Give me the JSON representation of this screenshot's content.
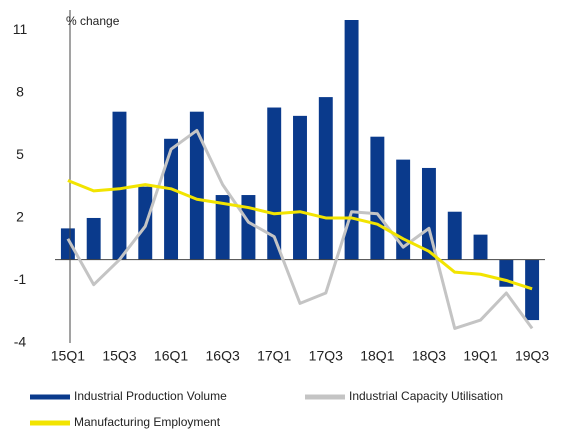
{
  "chart_data": {
    "type": "bar",
    "annotation": "% change",
    "categories": [
      "15Q1",
      null,
      "15Q3",
      null,
      "16Q1",
      null,
      "16Q3",
      null,
      "17Q1",
      null,
      "17Q3",
      null,
      "18Q1",
      null,
      "18Q3",
      null,
      "19Q1",
      null,
      "19Q3"
    ],
    "series": [
      {
        "name": "Industrial Production Volume",
        "type": "bar",
        "color": "#0a3a8c",
        "values": [
          1.5,
          2.0,
          7.1,
          3.5,
          5.8,
          7.1,
          3.1,
          3.1,
          7.3,
          6.9,
          7.8,
          11.5,
          5.9,
          4.8,
          4.4,
          2.3,
          1.2,
          -1.3,
          -2.9
        ]
      },
      {
        "name": "Industrial Capacity Utilisation",
        "type": "line",
        "color": "#c4c4c4",
        "values": [
          1.0,
          -1.2,
          0.0,
          1.6,
          5.3,
          6.2,
          3.6,
          1.8,
          1.1,
          -2.1,
          -1.6,
          2.3,
          2.2,
          0.6,
          1.5,
          -3.3,
          -2.9,
          -1.6,
          -3.3
        ]
      },
      {
        "name": "Manufacturing Employment",
        "type": "line",
        "color": "#f2e400",
        "values": [
          3.8,
          3.3,
          3.4,
          3.6,
          3.4,
          2.9,
          2.7,
          2.5,
          2.2,
          2.3,
          2.0,
          2.0,
          1.7,
          1.0,
          0.4,
          -0.6,
          -0.7,
          -1.0,
          -1.4
        ]
      }
    ],
    "ylim": [
      -4,
      11.5
    ],
    "yticks": [
      -4,
      -1,
      2,
      5,
      8,
      11
    ],
    "grid": false
  }
}
